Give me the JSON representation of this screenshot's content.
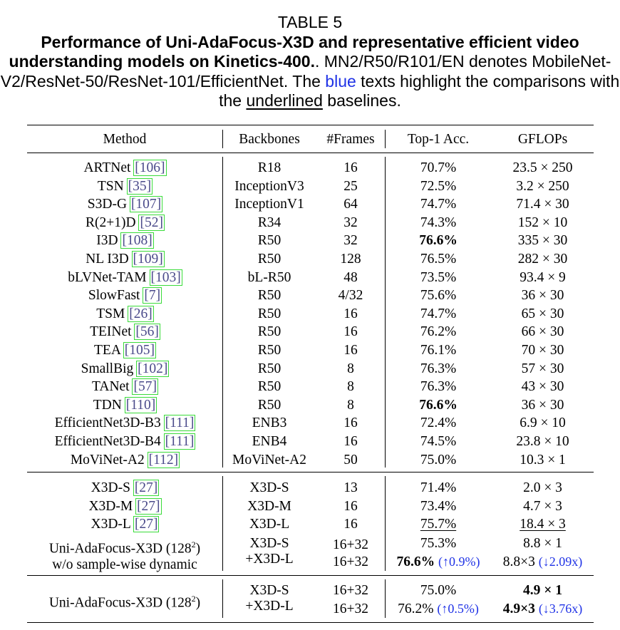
{
  "caption": {
    "label": "TABLE 5",
    "title": "Performance of Uni-AdaFocus-X3D and representative efficient video understanding models on Kinetics-400.",
    "title_suffix": ".",
    "desc_1": "MN2/R50/R101/EN denotes MobileNet-V2/ResNet-50/ResNet-101/EfficientNet. The ",
    "desc_blue": "blue",
    "desc_2": " texts highlight the comparisons with the ",
    "desc_underlined": "underlined",
    "desc_3": " baselines."
  },
  "headers": {
    "method": "Method",
    "backbones": "Backbones",
    "frames": "#Frames",
    "top1": "Top-1 Acc.",
    "gflops": "GFLOPs"
  },
  "rows_group1": [
    {
      "method": "ARTNet",
      "ref": "106",
      "backbone": "R18",
      "frames": "16",
      "acc": "70.7%",
      "gflops": "23.5 × 250"
    },
    {
      "method": "TSN",
      "ref": "35",
      "backbone": "InceptionV3",
      "frames": "25",
      "acc": "72.5%",
      "gflops": "3.2 × 250"
    },
    {
      "method": "S3D-G",
      "ref": "107",
      "backbone": "InceptionV1",
      "frames": "64",
      "acc": "74.7%",
      "gflops": "71.4 × 30"
    },
    {
      "method": "R(2+1)D",
      "ref": "52",
      "backbone": "R34",
      "frames": "32",
      "acc": "74.3%",
      "gflops": "152 × 10"
    },
    {
      "method": "I3D",
      "ref": "108",
      "backbone": "R50",
      "frames": "32",
      "acc": "76.6%",
      "gflops": "335 × 30"
    },
    {
      "method": "NL I3D",
      "ref": "109",
      "backbone": "R50",
      "frames": "128",
      "acc": "76.5%",
      "gflops": "282 × 30"
    },
    {
      "method": "bLVNet-TAM",
      "ref": "103",
      "backbone": "bL-R50",
      "frames": "48",
      "acc": "73.5%",
      "gflops": "93.4 × 9"
    },
    {
      "method": "SlowFast",
      "ref": "7",
      "backbone": "R50",
      "frames": "4/32",
      "acc": "75.6%",
      "gflops": "36 × 30"
    },
    {
      "method": "TSM",
      "ref": "26",
      "backbone": "R50",
      "frames": "16",
      "acc": "74.7%",
      "gflops": "65 × 30"
    },
    {
      "method": "TEINet",
      "ref": "56",
      "backbone": "R50",
      "frames": "16",
      "acc": "76.2%",
      "gflops": "66 × 30"
    },
    {
      "method": "TEA",
      "ref": "105",
      "backbone": "R50",
      "frames": "16",
      "acc": "76.1%",
      "gflops": "70 × 30"
    },
    {
      "method": "SmallBig",
      "ref": "102",
      "backbone": "R50",
      "frames": "8",
      "acc": "76.3%",
      "gflops": "57 × 30"
    },
    {
      "method": "TANet",
      "ref": "57",
      "backbone": "R50",
      "frames": "8",
      "acc": "76.3%",
      "gflops": "43 × 30"
    },
    {
      "method": "TDN",
      "ref": "110",
      "backbone": "R50",
      "frames": "8",
      "acc": "76.6%",
      "gflops": "36 × 30"
    },
    {
      "method": "EfficientNet3D-B3",
      "ref": "111",
      "backbone": "ENB3",
      "frames": "16",
      "acc": "72.4%",
      "gflops": "6.9 × 10"
    },
    {
      "method": "EfficientNet3D-B4",
      "ref": "111",
      "backbone": "ENB4",
      "frames": "16",
      "acc": "74.5%",
      "gflops": "23.8 × 10"
    },
    {
      "method": "MoViNet-A2",
      "ref": "112",
      "backbone": "MoViNet-A2",
      "frames": "50",
      "acc": "75.0%",
      "gflops": "10.3 × 1"
    }
  ],
  "rows_group2": [
    {
      "method": "X3D-S",
      "ref": "27",
      "backbone": "X3D-S",
      "frames": "13",
      "acc": "71.4%",
      "gflops": "2.0 × 3"
    },
    {
      "method": "X3D-M",
      "ref": "27",
      "backbone": "X3D-M",
      "frames": "16",
      "acc": "73.4%",
      "gflops": "4.7 × 3"
    },
    {
      "method": "X3D-L",
      "ref": "27",
      "backbone": "X3D-L",
      "frames": "16",
      "acc": "75.7%",
      "gflops": "18.4 × 3"
    }
  ],
  "ablation": {
    "method_line1": "Uni-AdaFocus-X3D (128",
    "method_sup": "2",
    "method_line1_end": ")",
    "method_line2": "w/o sample-wise dynamic",
    "backbone_1": "X3D-S",
    "backbone_2": "+X3D-L",
    "frames_1": "16+32",
    "frames_2": "16+32",
    "acc_1": "75.3%",
    "acc_2": "76.6%",
    "acc_2_delta": "(↑0.9%)",
    "gflops_1": "8.8 × 1",
    "gflops_2": "8.8×3",
    "gflops_2_delta": "(↓2.09x)"
  },
  "final": {
    "method": "Uni-AdaFocus-X3D (128",
    "method_sup": "2",
    "method_end": ")",
    "backbone_1": "X3D-S",
    "backbone_2": "+X3D-L",
    "frames_1": "16+32",
    "frames_2": "16+32",
    "acc_1": "75.0%",
    "acc_2": "76.2%",
    "acc_2_delta": "(↑0.5%)",
    "gflops_1": "4.9 × 1",
    "gflops_2": "4.9×3",
    "gflops_2_delta": "(↓3.76x)"
  }
}
